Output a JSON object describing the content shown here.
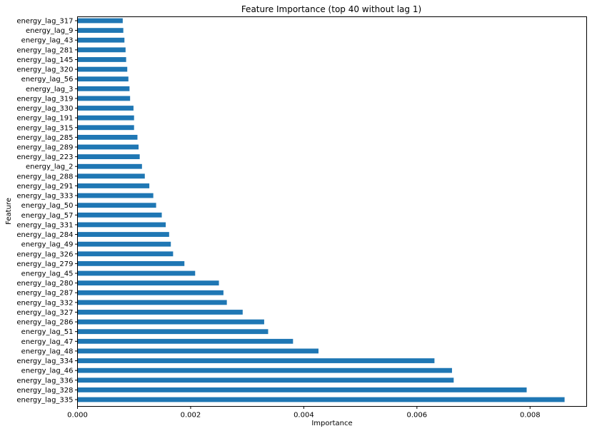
{
  "chart_data": {
    "type": "bar",
    "orientation": "horizontal",
    "title": "Feature Importance (top 40 without lag 1)",
    "xlabel": "Importance",
    "ylabel": "Feature",
    "xlim": [
      0,
      0.009
    ],
    "xticks": [
      0,
      0.002,
      0.004,
      0.006,
      0.008
    ],
    "xtick_labels": [
      "0.000",
      "0.002",
      "0.004",
      "0.006",
      "0.008"
    ],
    "bar_color": "#1f77b4",
    "grid": false,
    "categories": [
      "energy_lag_335",
      "energy_lag_328",
      "energy_lag_336",
      "energy_lag_46",
      "energy_lag_334",
      "energy_lag_48",
      "energy_lag_47",
      "energy_lag_51",
      "energy_lag_286",
      "energy_lag_327",
      "energy_lag_332",
      "energy_lag_287",
      "energy_lag_280",
      "energy_lag_45",
      "energy_lag_279",
      "energy_lag_326",
      "energy_lag_49",
      "energy_lag_284",
      "energy_lag_331",
      "energy_lag_57",
      "energy_lag_50",
      "energy_lag_333",
      "energy_lag_291",
      "energy_lag_288",
      "energy_lag_2",
      "energy_lag_223",
      "energy_lag_289",
      "energy_lag_285",
      "energy_lag_315",
      "energy_lag_191",
      "energy_lag_330",
      "energy_lag_319",
      "energy_lag_3",
      "energy_lag_56",
      "energy_lag_320",
      "energy_lag_145",
      "energy_lag_281",
      "energy_lag_43",
      "energy_lag_9",
      "energy_lag_317"
    ],
    "values": [
      0.00861,
      0.00794,
      0.00665,
      0.00662,
      0.00631,
      0.00426,
      0.00381,
      0.00337,
      0.0033,
      0.00292,
      0.00264,
      0.00258,
      0.0025,
      0.00208,
      0.00189,
      0.00169,
      0.00165,
      0.00162,
      0.00156,
      0.00149,
      0.00139,
      0.00134,
      0.00127,
      0.00119,
      0.00114,
      0.0011,
      0.00108,
      0.00106,
      0.001,
      0.001,
      0.00099,
      0.00093,
      0.00092,
      0.0009,
      0.00088,
      0.00086,
      0.00085,
      0.00083,
      0.00081,
      0.0008
    ]
  }
}
